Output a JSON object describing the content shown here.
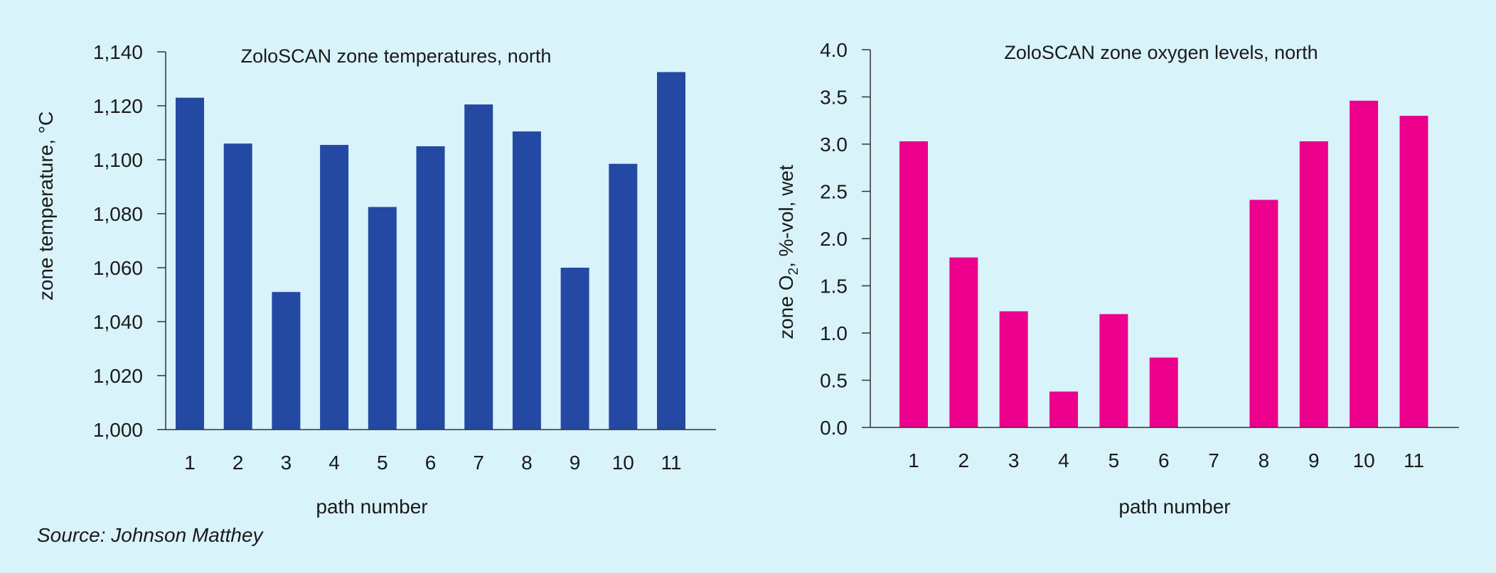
{
  "source": "Source: Johnson Matthey",
  "chart_data": [
    {
      "type": "bar",
      "title": "ZoloSCAN zone temperatures, north",
      "xlabel": "path number",
      "ylabel": "zone temperature, °C",
      "categories": [
        "1",
        "2",
        "3",
        "4",
        "5",
        "6",
        "7",
        "8",
        "9",
        "10",
        "11"
      ],
      "values": [
        1123,
        1106,
        1051,
        1105.5,
        1082.5,
        1105,
        1120.5,
        1110.5,
        1060,
        1098.5,
        1132.5
      ],
      "ylim": [
        1000,
        1140
      ],
      "yticks": [
        1000,
        1020,
        1040,
        1060,
        1080,
        1100,
        1120,
        1140
      ],
      "ytick_labels": [
        "1,000",
        "1,020",
        "1,040",
        "1,060",
        "1,080",
        "1,100",
        "1,120",
        "1,140"
      ],
      "color": "#2449a3",
      "grid": false
    },
    {
      "type": "bar",
      "title": "ZoloSCAN zone oxygen levels, north",
      "xlabel": "path number",
      "ylabel": "zone O2, %-vol, wet",
      "ylabel_parts": {
        "pre": "zone O",
        "sub": "2",
        "post": ", %-vol, wet"
      },
      "categories": [
        "1",
        "2",
        "3",
        "4",
        "5",
        "6",
        "7",
        "8",
        "9",
        "10",
        "11"
      ],
      "values": [
        3.03,
        1.8,
        1.23,
        0.38,
        1.2,
        0.74,
        0,
        2.41,
        3.03,
        3.46,
        3.3
      ],
      "ylim": [
        0,
        4.0
      ],
      "yticks": [
        0,
        0.5,
        1.0,
        1.5,
        2.0,
        2.5,
        3.0,
        3.5,
        4.0
      ],
      "ytick_labels": [
        "0.0",
        "0.5",
        "1.0",
        "1.5",
        "2.0",
        "2.5",
        "3.0",
        "3.5",
        "4.0"
      ],
      "color": "#ec008c",
      "grid": false
    }
  ]
}
